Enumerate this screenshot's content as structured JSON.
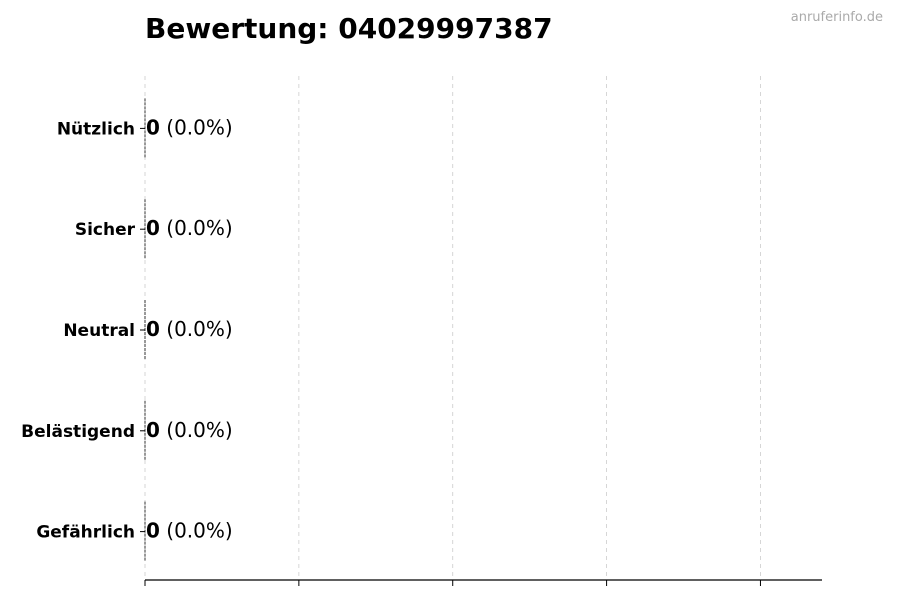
{
  "title": "Bewertung: 04029997387",
  "watermark": "anruferinfo.de",
  "chart_data": {
    "type": "bar",
    "orientation": "horizontal",
    "title": "Bewertung: 04029997387",
    "categories": [
      "Nützlich",
      "Sicher",
      "Neutral",
      "Belästigend",
      "Gefährlich"
    ],
    "values": [
      0,
      0,
      0,
      0,
      0
    ],
    "labels": [
      {
        "count": "0",
        "pct": "(0.0%)"
      },
      {
        "count": "0",
        "pct": "(0.0%)"
      },
      {
        "count": "0",
        "pct": "(0.0%)"
      },
      {
        "count": "0",
        "pct": "(0.0%)"
      },
      {
        "count": "0",
        "pct": "(0.0%)"
      }
    ],
    "xlim": [
      0,
      4.4
    ],
    "grid": "x dashed",
    "xtick_labels_shown": false
  }
}
